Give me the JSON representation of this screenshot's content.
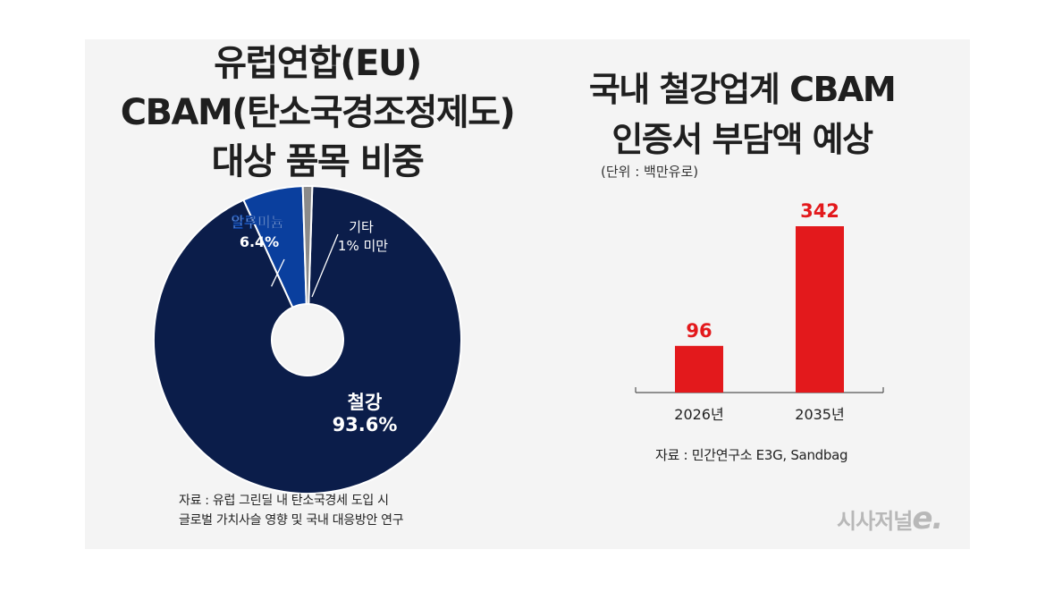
{
  "left": {
    "title_lines": [
      "유럽연합(EU)",
      "CBAM(탄소국경조정제도)",
      "대상 품목 비중"
    ],
    "source_lines": [
      "자료 : 유럽 그린딜 내 탄소국경세 도입 시",
      "글로벌 가치사슬 영향 및 국내 대응방안 연구"
    ]
  },
  "right": {
    "title_lines": [
      "국내 철강업계 CBAM",
      "인증서 부담액 예상"
    ],
    "unit": "(단위 : 백만유로)",
    "source": "자료 : 민간연구소 E3G, Sandbag"
  },
  "logo": {
    "text": "시사저널",
    "mark": "e."
  },
  "colors": {
    "steel": "#0b1d4a",
    "aluminum": "#0a3f9e",
    "other": "#8a8a8a",
    "bar": "#e3191c",
    "bar_label": "#e3191c"
  },
  "chart_data": [
    {
      "type": "pie",
      "title": "유럽연합(EU) CBAM(탄소국경조정제도) 대상 품목 비중",
      "slices": [
        {
          "name": "철강",
          "value": 93.6,
          "label_value": "93.6%"
        },
        {
          "name": "알루미늄",
          "value": 6.4,
          "label_value": "6.4%"
        },
        {
          "name": "기타",
          "value": 1,
          "label_value": "1% 미만"
        }
      ]
    },
    {
      "type": "bar",
      "title": "국내 철강업계 CBAM 인증서 부담액 예상",
      "unit": "백만유로",
      "categories": [
        "2026년",
        "2035년"
      ],
      "values": [
        96,
        342
      ],
      "ylim": [
        0,
        380
      ]
    }
  ]
}
